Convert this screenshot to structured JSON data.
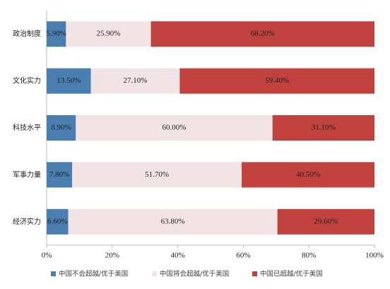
{
  "chart_data": {
    "type": "stacked-barh",
    "categories": [
      "政治制度",
      "文化实力",
      "科技水平",
      "军事力量",
      "经济实力"
    ],
    "series": [
      {
        "name": "中国不会超越/优于美国",
        "color": "#4a7eb0",
        "values": [
          5.9,
          13.5,
          8.9,
          7.8,
          6.6
        ],
        "value_labels": [
          "5.90%",
          "13.50%",
          "8.90%",
          "7.80%",
          "6.60%"
        ]
      },
      {
        "name": "中国将会超越/优于美国",
        "color": "#f2e4e4",
        "values": [
          25.9,
          27.1,
          60.0,
          51.7,
          63.8
        ],
        "value_labels": [
          "25.90%",
          "27.10%",
          "60.00%",
          "51.70%",
          "63.80%"
        ]
      },
      {
        "name": "中国已超越/优于美国",
        "color": "#c0413e",
        "values": [
          68.2,
          59.4,
          31.1,
          40.5,
          29.6
        ],
        "value_labels": [
          "68.20%",
          "59.40%",
          "31.10%",
          "40.50%",
          "29.60%"
        ]
      }
    ],
    "xlim": [
      0,
      100
    ],
    "xticks": [
      {
        "value": 0,
        "label": "0%"
      },
      {
        "value": 20,
        "label": "20%"
      },
      {
        "value": 40,
        "label": "40%"
      },
      {
        "value": 60,
        "label": "60%"
      },
      {
        "value": 80,
        "label": "80%"
      },
      {
        "value": 100,
        "label": "100%"
      }
    ],
    "legend": "bottom"
  }
}
